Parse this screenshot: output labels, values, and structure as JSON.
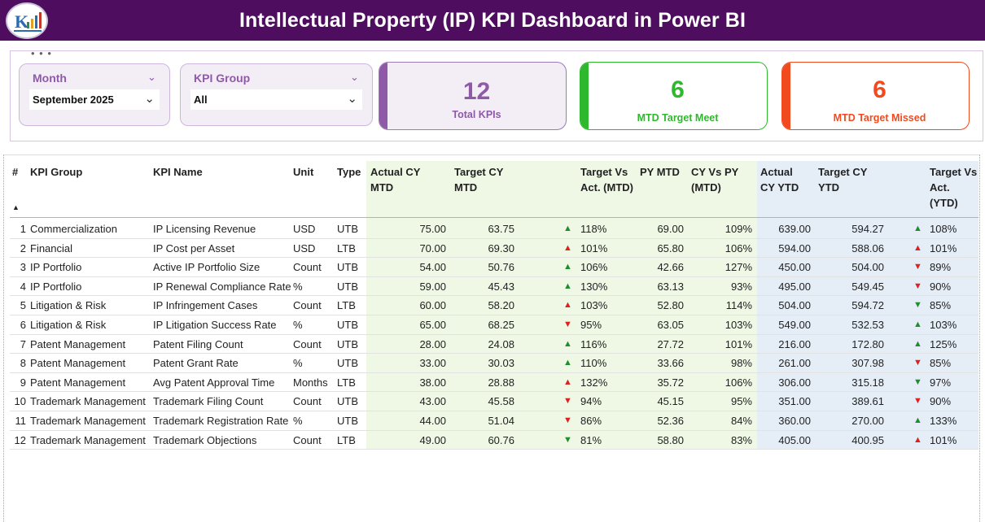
{
  "title": "Intellectual Property (IP) KPI Dashboard in Power BI",
  "colors": {
    "title_bg": "#4e0d5f",
    "purple": "#8e5aa8",
    "green": "#2eb82e",
    "red": "#f04a1e"
  },
  "filters": {
    "month": {
      "label": "Month",
      "value": "September 2025"
    },
    "kpi_group": {
      "label": "KPI Group",
      "value": "All"
    }
  },
  "cards": {
    "total": {
      "value": "12",
      "label": "Total KPIs"
    },
    "meet": {
      "value": "6",
      "label": "MTD Target Meet"
    },
    "missed": {
      "value": "6",
      "label": "MTD Target Missed"
    }
  },
  "table": {
    "headers": {
      "num": "#",
      "group": "KPI Group",
      "name": "KPI Name",
      "unit": "Unit",
      "type": "Type",
      "act_mtd": "Actual CY MTD",
      "tgt_mtd": "Target CY MTD",
      "tva_mtd": "Target Vs Act. (MTD)",
      "py_mtd": "PY MTD",
      "cvp_mtd": "CY Vs PY (MTD)",
      "act_ytd": "Actual CY YTD",
      "tgt_ytd": "Target CY YTD",
      "tva_ytd": "Target Vs Act. (YTD)"
    },
    "rows": [
      {
        "num": "1",
        "group": "Commercialization",
        "name": "IP Licensing Revenue",
        "unit": "USD",
        "type": "UTB",
        "act_mtd": "75.00",
        "tgt_mtd": "63.75",
        "ind_mtd": "up-green",
        "tva_mtd": "118%",
        "py_mtd": "69.00",
        "cvp_mtd": "109%",
        "act_ytd": "639.00",
        "tgt_ytd": "594.27",
        "ind_ytd": "up-green",
        "tva_ytd": "108%"
      },
      {
        "num": "2",
        "group": "Financial",
        "name": "IP Cost per Asset",
        "unit": "USD",
        "type": "LTB",
        "act_mtd": "70.00",
        "tgt_mtd": "69.30",
        "ind_mtd": "up-red",
        "tva_mtd": "101%",
        "py_mtd": "65.80",
        "cvp_mtd": "106%",
        "act_ytd": "594.00",
        "tgt_ytd": "588.06",
        "ind_ytd": "up-red",
        "tva_ytd": "101%"
      },
      {
        "num": "3",
        "group": "IP Portfolio",
        "name": "Active IP Portfolio Size",
        "unit": "Count",
        "type": "UTB",
        "act_mtd": "54.00",
        "tgt_mtd": "50.76",
        "ind_mtd": "up-green",
        "tva_mtd": "106%",
        "py_mtd": "42.66",
        "cvp_mtd": "127%",
        "act_ytd": "450.00",
        "tgt_ytd": "504.00",
        "ind_ytd": "down-red",
        "tva_ytd": "89%"
      },
      {
        "num": "4",
        "group": "IP Portfolio",
        "name": "IP Renewal Compliance Rate",
        "unit": "%",
        "type": "UTB",
        "act_mtd": "59.00",
        "tgt_mtd": "45.43",
        "ind_mtd": "up-green",
        "tva_mtd": "130%",
        "py_mtd": "63.13",
        "cvp_mtd": "93%",
        "act_ytd": "495.00",
        "tgt_ytd": "549.45",
        "ind_ytd": "down-red",
        "tva_ytd": "90%"
      },
      {
        "num": "5",
        "group": "Litigation & Risk",
        "name": "IP Infringement Cases",
        "unit": "Count",
        "type": "LTB",
        "act_mtd": "60.00",
        "tgt_mtd": "58.20",
        "ind_mtd": "up-red",
        "tva_mtd": "103%",
        "py_mtd": "52.80",
        "cvp_mtd": "114%",
        "act_ytd": "504.00",
        "tgt_ytd": "594.72",
        "ind_ytd": "down-green",
        "tva_ytd": "85%"
      },
      {
        "num": "6",
        "group": "Litigation & Risk",
        "name": "IP Litigation Success Rate",
        "unit": "%",
        "type": "UTB",
        "act_mtd": "65.00",
        "tgt_mtd": "68.25",
        "ind_mtd": "down-red",
        "tva_mtd": "95%",
        "py_mtd": "63.05",
        "cvp_mtd": "103%",
        "act_ytd": "549.00",
        "tgt_ytd": "532.53",
        "ind_ytd": "up-green",
        "tva_ytd": "103%"
      },
      {
        "num": "7",
        "group": "Patent Management",
        "name": "Patent Filing Count",
        "unit": "Count",
        "type": "UTB",
        "act_mtd": "28.00",
        "tgt_mtd": "24.08",
        "ind_mtd": "up-green",
        "tva_mtd": "116%",
        "py_mtd": "27.72",
        "cvp_mtd": "101%",
        "act_ytd": "216.00",
        "tgt_ytd": "172.80",
        "ind_ytd": "up-green",
        "tva_ytd": "125%"
      },
      {
        "num": "8",
        "group": "Patent Management",
        "name": "Patent Grant Rate",
        "unit": "%",
        "type": "UTB",
        "act_mtd": "33.00",
        "tgt_mtd": "30.03",
        "ind_mtd": "up-green",
        "tva_mtd": "110%",
        "py_mtd": "33.66",
        "cvp_mtd": "98%",
        "act_ytd": "261.00",
        "tgt_ytd": "307.98",
        "ind_ytd": "down-red",
        "tva_ytd": "85%"
      },
      {
        "num": "9",
        "group": "Patent Management",
        "name": "Avg Patent Approval Time",
        "unit": "Months",
        "type": "LTB",
        "act_mtd": "38.00",
        "tgt_mtd": "28.88",
        "ind_mtd": "up-red",
        "tva_mtd": "132%",
        "py_mtd": "35.72",
        "cvp_mtd": "106%",
        "act_ytd": "306.00",
        "tgt_ytd": "315.18",
        "ind_ytd": "down-green",
        "tva_ytd": "97%"
      },
      {
        "num": "10",
        "group": "Trademark Management",
        "name": "Trademark Filing Count",
        "unit": "Count",
        "type": "UTB",
        "act_mtd": "43.00",
        "tgt_mtd": "45.58",
        "ind_mtd": "down-red",
        "tva_mtd": "94%",
        "py_mtd": "45.15",
        "cvp_mtd": "95%",
        "act_ytd": "351.00",
        "tgt_ytd": "389.61",
        "ind_ytd": "down-red",
        "tva_ytd": "90%"
      },
      {
        "num": "11",
        "group": "Trademark Management",
        "name": "Trademark Registration Rate",
        "unit": "%",
        "type": "UTB",
        "act_mtd": "44.00",
        "tgt_mtd": "51.04",
        "ind_mtd": "down-red",
        "tva_mtd": "86%",
        "py_mtd": "52.36",
        "cvp_mtd": "84%",
        "act_ytd": "360.00",
        "tgt_ytd": "270.00",
        "ind_ytd": "up-green",
        "tva_ytd": "133%"
      },
      {
        "num": "12",
        "group": "Trademark Management",
        "name": "Trademark Objections",
        "unit": "Count",
        "type": "LTB",
        "act_mtd": "49.00",
        "tgt_mtd": "60.76",
        "ind_mtd": "down-green",
        "tva_mtd": "81%",
        "py_mtd": "58.80",
        "cvp_mtd": "83%",
        "act_ytd": "405.00",
        "tgt_ytd": "400.95",
        "ind_ytd": "up-red",
        "tva_ytd": "101%"
      }
    ]
  }
}
